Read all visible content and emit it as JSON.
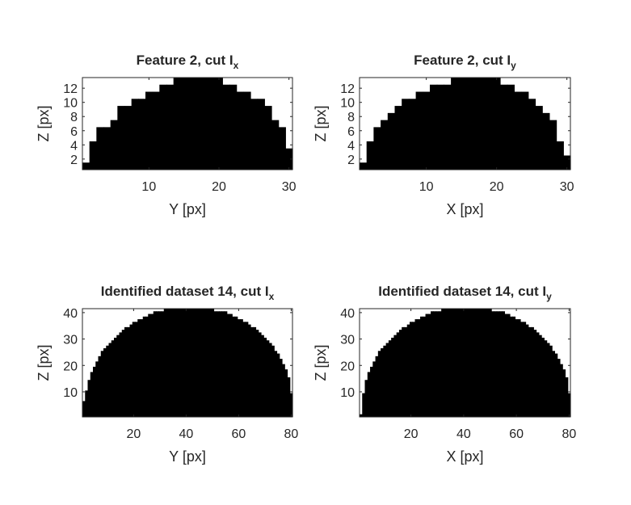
{
  "figure": {
    "background": "#ffffff",
    "foreground": "#000000",
    "axis_color": "#262626"
  },
  "chart_data": [
    {
      "type": "heatmap",
      "title": "Feature 2, cut I",
      "title_subscript": "x",
      "xlabel": "Y [px]",
      "ylabel": "Z [px]",
      "xlim": [
        0.5,
        30.5
      ],
      "ylim": [
        0.5,
        13.5
      ],
      "xticks": [
        10,
        20,
        30
      ],
      "yticks": [
        2,
        4,
        6,
        8,
        10,
        12
      ],
      "x": [
        1,
        2,
        3,
        4,
        5,
        6,
        7,
        8,
        9,
        10,
        11,
        12,
        13,
        14,
        15,
        16,
        17,
        18,
        19,
        20,
        21,
        22,
        23,
        24,
        25,
        26,
        27,
        28,
        29,
        30
      ],
      "column_heights": [
        1,
        4,
        6,
        6,
        7,
        9,
        9,
        10,
        10,
        11,
        11,
        12,
        12,
        13,
        13,
        13,
        13,
        13,
        13,
        13,
        12,
        12,
        11,
        11,
        10,
        10,
        9,
        7,
        6,
        3
      ]
    },
    {
      "type": "heatmap",
      "title": "Feature 2, cut I",
      "title_subscript": "y",
      "xlabel": "X [px]",
      "ylabel": "Z [px]",
      "xlim": [
        0.5,
        30.5
      ],
      "ylim": [
        0.5,
        13.5
      ],
      "xticks": [
        10,
        20,
        30
      ],
      "yticks": [
        2,
        4,
        6,
        8,
        10,
        12
      ],
      "x": [
        1,
        2,
        3,
        4,
        5,
        6,
        7,
        8,
        9,
        10,
        11,
        12,
        13,
        14,
        15,
        16,
        17,
        18,
        19,
        20,
        21,
        22,
        23,
        24,
        25,
        26,
        27,
        28,
        29,
        30
      ],
      "column_heights": [
        1,
        4,
        6,
        7,
        8,
        9,
        10,
        10,
        11,
        11,
        12,
        12,
        12,
        13,
        13,
        13,
        13,
        13,
        13,
        13,
        12,
        12,
        11,
        11,
        10,
        9,
        8,
        7,
        4,
        2
      ]
    },
    {
      "type": "heatmap",
      "title": "Identified dataset 14, cut I",
      "title_subscript": "x",
      "xlabel": "Y [px]",
      "ylabel": "Z [px]",
      "xlim": [
        0.5,
        80.5
      ],
      "ylim": [
        0.5,
        41.5
      ],
      "xticks": [
        20,
        40,
        60,
        80
      ],
      "yticks": [
        10,
        20,
        30,
        40
      ],
      "x_start": 1,
      "column_heights": [
        6,
        10,
        14,
        17,
        19,
        21,
        23,
        25,
        26,
        27,
        28,
        29,
        30,
        31,
        32,
        33,
        34,
        34,
        35,
        36,
        36,
        37,
        37,
        38,
        38,
        39,
        39,
        40,
        40,
        40,
        40,
        41,
        41,
        41,
        41,
        41,
        41,
        41,
        41,
        41,
        41,
        41,
        41,
        41,
        41,
        41,
        41,
        41,
        41,
        41,
        40,
        40,
        40,
        40,
        40,
        39,
        39,
        38,
        38,
        37,
        37,
        36,
        36,
        35,
        34,
        34,
        33,
        32,
        31,
        30,
        29,
        28,
        27,
        25,
        24,
        22,
        20,
        18,
        15,
        9
      ]
    },
    {
      "type": "heatmap",
      "title": "Identified dataset 14, cut I",
      "title_subscript": "y",
      "xlabel": "X [px]",
      "ylabel": "Z [px]",
      "xlim": [
        0.5,
        80.5
      ],
      "ylim": [
        0.5,
        41.5
      ],
      "xticks": [
        20,
        40,
        60,
        80
      ],
      "yticks": [
        10,
        20,
        30,
        40
      ],
      "x_start": 1,
      "column_heights": [
        1,
        9,
        14,
        17,
        19,
        21,
        23,
        25,
        26,
        27,
        28,
        29,
        30,
        31,
        32,
        33,
        34,
        34,
        35,
        36,
        36,
        37,
        37,
        38,
        38,
        39,
        39,
        40,
        40,
        40,
        40,
        41,
        41,
        41,
        41,
        41,
        41,
        41,
        41,
        41,
        41,
        41,
        41,
        41,
        41,
        41,
        41,
        41,
        41,
        41,
        40,
        40,
        40,
        40,
        40,
        39,
        39,
        38,
        38,
        37,
        37,
        36,
        36,
        35,
        34,
        34,
        33,
        32,
        31,
        30,
        29,
        28,
        27,
        25,
        24,
        22,
        20,
        18,
        15,
        9
      ]
    }
  ]
}
